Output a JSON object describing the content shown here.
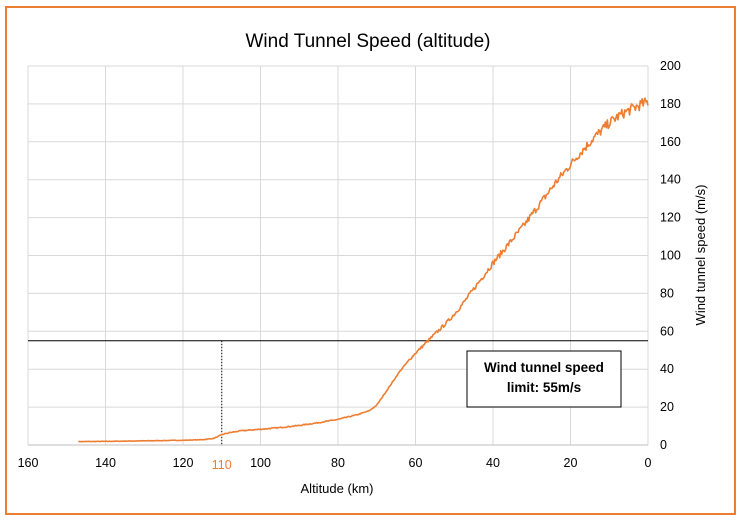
{
  "chart_data": {
    "type": "line",
    "title": "Wind Tunnel Speed (altitude)",
    "xlabel": "Altitude (km)",
    "ylabel": "Wind tunnel speed (m/s)",
    "x_reversed": true,
    "xlim": [
      0,
      160
    ],
    "ylim": [
      0,
      200
    ],
    "x_ticks": [
      160,
      140,
      120,
      100,
      80,
      60,
      40,
      20,
      0
    ],
    "y_ticks": [
      0,
      20,
      40,
      60,
      80,
      100,
      120,
      140,
      160,
      180,
      200
    ],
    "y_axis_side": "right",
    "grid": true,
    "legend": "none",
    "series_color": "#ED7D31",
    "series": [
      {
        "x": [
          147,
          140,
          130,
          120,
          115,
          112,
          110,
          108,
          105,
          100,
          95,
          90,
          85,
          80,
          75,
          72,
          70,
          68,
          66,
          64,
          62,
          60,
          58,
          56,
          54,
          52,
          50,
          48,
          46,
          44,
          42,
          40,
          38,
          36,
          34,
          32,
          30,
          28,
          26,
          24,
          22,
          20,
          18,
          16,
          14,
          12,
          10,
          8,
          6,
          4,
          2,
          0
        ],
        "y": [
          1.8,
          1.9,
          2.2,
          2.5,
          2.8,
          3.5,
          5.5,
          6.5,
          7.5,
          8.3,
          9.2,
          10.3,
          11.8,
          13.5,
          16,
          18,
          21,
          27,
          33,
          39,
          44,
          48.5,
          52.5,
          56.5,
          60.5,
          64.5,
          69,
          74,
          79.5,
          85,
          90.5,
          96,
          101,
          106,
          111,
          116,
          121.5,
          127,
          132.5,
          138,
          143,
          148,
          153,
          157.5,
          162,
          166,
          170,
          173,
          175.5,
          177.5,
          179.5,
          181
        ],
        "noise": "high-frequency oscillation above 62 km altitude and below"
      }
    ],
    "annotations": {
      "limit_line": {
        "y": 55,
        "label_lines": [
          "Wind tunnel speed",
          "limit: 55m/s"
        ]
      },
      "marker": {
        "x": 110,
        "label": "110",
        "color": "#ED7D31"
      }
    }
  }
}
